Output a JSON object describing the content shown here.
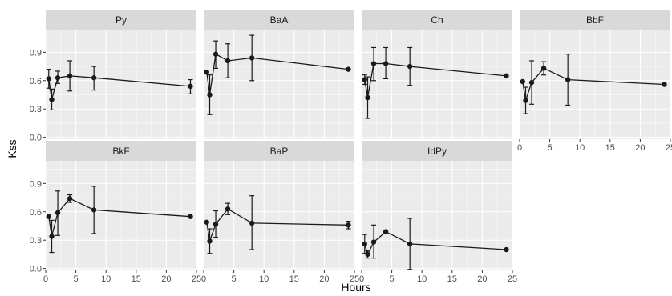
{
  "chart_data": {
    "type": "line",
    "facet_layout": "wrap",
    "xlabel": "Hours",
    "ylabel": "Kss",
    "xlim": [
      0,
      25
    ],
    "ylim": [
      -0.02,
      1.14
    ],
    "x_ticks": [
      0,
      5,
      10,
      15,
      20,
      25
    ],
    "y_ticks": [
      0.0,
      0.3,
      0.6,
      0.9
    ],
    "y_tick_labels": [
      "0.0",
      "0.3",
      "0.6",
      "0.9"
    ],
    "grid": true,
    "colors": {
      "panel_bg": "#ebebeb",
      "strip_bg": "#d9d9d9",
      "grid": "#ffffff",
      "line": "#1a1a1a",
      "tick_text": "#4d4d4d"
    },
    "panels": [
      {
        "name": "Py",
        "points": [
          {
            "x": 0.5,
            "y": 0.62,
            "ymin": 0.52,
            "ymax": 0.72
          },
          {
            "x": 1,
            "y": 0.4,
            "ymin": 0.29,
            "ymax": 0.51
          },
          {
            "x": 2,
            "y": 0.63,
            "ymin": 0.57,
            "ymax": 0.7
          },
          {
            "x": 4,
            "y": 0.65,
            "ymin": 0.49,
            "ymax": 0.81
          },
          {
            "x": 8,
            "y": 0.63,
            "ymin": 0.5,
            "ymax": 0.75
          },
          {
            "x": 24,
            "y": 0.54,
            "ymin": 0.46,
            "ymax": 0.61
          }
        ]
      },
      {
        "name": "BaA",
        "points": [
          {
            "x": 0.5,
            "y": 0.69
          },
          {
            "x": 1,
            "y": 0.45,
            "ymin": 0.24,
            "ymax": 0.66
          },
          {
            "x": 2,
            "y": 0.88,
            "ymin": 0.73,
            "ymax": 1.02
          },
          {
            "x": 4,
            "y": 0.81,
            "ymin": 0.63,
            "ymax": 0.99
          },
          {
            "x": 8,
            "y": 0.84,
            "ymin": 0.6,
            "ymax": 1.08
          },
          {
            "x": 24,
            "y": 0.72
          }
        ]
      },
      {
        "name": "Ch",
        "points": [
          {
            "x": 0.5,
            "y": 0.61,
            "ymin": 0.56,
            "ymax": 0.66
          },
          {
            "x": 1,
            "y": 0.42,
            "ymin": 0.2,
            "ymax": 0.64
          },
          {
            "x": 2,
            "y": 0.78,
            "ymin": 0.6,
            "ymax": 0.95
          },
          {
            "x": 4,
            "y": 0.78,
            "ymin": 0.62,
            "ymax": 0.95
          },
          {
            "x": 8,
            "y": 0.75,
            "ymin": 0.55,
            "ymax": 0.95
          },
          {
            "x": 24,
            "y": 0.65
          }
        ]
      },
      {
        "name": "BbF",
        "points": [
          {
            "x": 0.5,
            "y": 0.59
          },
          {
            "x": 1,
            "y": 0.39,
            "ymin": 0.25,
            "ymax": 0.53
          },
          {
            "x": 2,
            "y": 0.58,
            "ymin": 0.35,
            "ymax": 0.81
          },
          {
            "x": 4,
            "y": 0.73,
            "ymin": 0.66,
            "ymax": 0.8
          },
          {
            "x": 8,
            "y": 0.61,
            "ymin": 0.34,
            "ymax": 0.88
          },
          {
            "x": 24,
            "y": 0.56
          }
        ]
      },
      {
        "name": "BkF",
        "points": [
          {
            "x": 0.5,
            "y": 0.55
          },
          {
            "x": 1,
            "y": 0.34,
            "ymin": 0.17,
            "ymax": 0.51
          },
          {
            "x": 2,
            "y": 0.59,
            "ymin": 0.35,
            "ymax": 0.82
          },
          {
            "x": 4,
            "y": 0.74,
            "ymin": 0.7,
            "ymax": 0.78
          },
          {
            "x": 8,
            "y": 0.62,
            "ymin": 0.37,
            "ymax": 0.87
          },
          {
            "x": 24,
            "y": 0.55
          }
        ]
      },
      {
        "name": "BaP",
        "points": [
          {
            "x": 0.5,
            "y": 0.49
          },
          {
            "x": 1,
            "y": 0.29,
            "ymin": 0.16,
            "ymax": 0.42
          },
          {
            "x": 2,
            "y": 0.47,
            "ymin": 0.33,
            "ymax": 0.61
          },
          {
            "x": 4,
            "y": 0.63,
            "ymin": 0.57,
            "ymax": 0.69
          },
          {
            "x": 8,
            "y": 0.48,
            "ymin": 0.2,
            "ymax": 0.77
          },
          {
            "x": 24,
            "y": 0.46,
            "ymin": 0.42,
            "ymax": 0.5
          }
        ]
      },
      {
        "name": "IdPy",
        "points": [
          {
            "x": 0.5,
            "y": 0.26,
            "ymin": 0.16,
            "ymax": 0.36
          },
          {
            "x": 1,
            "y": 0.15,
            "ymin": 0.11,
            "ymax": 0.19
          },
          {
            "x": 2,
            "y": 0.28,
            "ymin": 0.11,
            "ymax": 0.46
          },
          {
            "x": 4,
            "y": 0.39
          },
          {
            "x": 8,
            "y": 0.26,
            "ymin": -0.01,
            "ymax": 0.53
          },
          {
            "x": 24,
            "y": 0.2
          }
        ]
      }
    ]
  }
}
